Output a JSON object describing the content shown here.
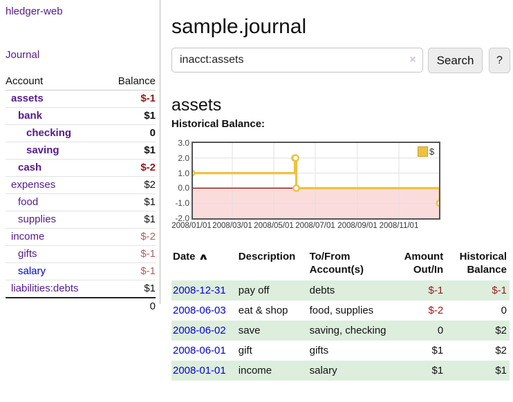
{
  "app": {
    "brand": "hledger-web"
  },
  "sidebar": {
    "nav_journal": "Journal",
    "table": {
      "headers": {
        "account": "Account",
        "balance": "Balance"
      },
      "rows": [
        {
          "name": "assets",
          "balance": "$-1"
        },
        {
          "name": "bank",
          "balance": "$1"
        },
        {
          "name": "checking",
          "balance": "0"
        },
        {
          "name": "saving",
          "balance": "$1"
        },
        {
          "name": "cash",
          "balance": "$-2"
        },
        {
          "name": "expenses",
          "balance": "$2"
        },
        {
          "name": "food",
          "balance": "$1"
        },
        {
          "name": "supplies",
          "balance": "$1"
        },
        {
          "name": "income",
          "balance": "$-2"
        },
        {
          "name": "gifts",
          "balance": "$-1"
        },
        {
          "name": "salary",
          "balance": "$-1"
        },
        {
          "name": "liabilities:debts",
          "balance": "$1"
        }
      ],
      "total": "0"
    }
  },
  "main": {
    "title": "sample.journal",
    "search": {
      "value": "inacct:assets",
      "clear_icon": "×",
      "button_label": "Search",
      "help_label": "?"
    },
    "account_heading": "assets",
    "chart_heading": "Historical Balance:"
  },
  "chart_data": {
    "type": "line",
    "step": true,
    "title": "Historical Balance",
    "legend": {
      "label": "$",
      "position": "top-right",
      "color": "#edc240"
    },
    "xlim": [
      "2008/01/01",
      "2009/01/01"
    ],
    "ylim": [
      -2,
      3
    ],
    "x_ticks": [
      "2008/01/01",
      "2008/03/01",
      "2008/05/01",
      "2008/07/01",
      "2008/09/01",
      "2008/11/01"
    ],
    "y_ticks": [
      3.0,
      2.0,
      1.0,
      0.0,
      -1.0,
      -2.0
    ],
    "grid": true,
    "zero_line_color": "#8b0000",
    "negative_region_fill": "#fbdcdc",
    "series": [
      {
        "name": "$",
        "color": "#edc240",
        "points": [
          [
            "2008/01/01",
            1
          ],
          [
            "2008/06/01",
            2
          ],
          [
            "2008/06/02",
            2
          ],
          [
            "2008/06/03",
            0
          ],
          [
            "2008/12/31",
            -1
          ]
        ]
      }
    ]
  },
  "register": {
    "headers": [
      {
        "l1": "Date",
        "l2": ""
      },
      {
        "l1": "Description",
        "l2": ""
      },
      {
        "l1": "To/From",
        "l2": "Account(s)"
      },
      {
        "l1": "Amount",
        "l2": "Out/In"
      },
      {
        "l1": "Historical",
        "l2": "Balance"
      }
    ],
    "sort_icon": "∧",
    "rows": [
      {
        "date": "2008-12-31",
        "description": "pay off",
        "accounts": "debts",
        "amount": "$-1",
        "balance": "$-1"
      },
      {
        "date": "2008-06-03",
        "description": "eat & shop",
        "accounts": "food, supplies",
        "amount": "$-2",
        "balance": "0"
      },
      {
        "date": "2008-06-02",
        "description": "save",
        "accounts": "saving, checking",
        "amount": "0",
        "balance": "$2"
      },
      {
        "date": "2008-06-01",
        "description": "gift",
        "accounts": "gifts",
        "amount": "$1",
        "balance": "$2"
      },
      {
        "date": "2008-01-01",
        "description": "income",
        "accounts": "salary",
        "amount": "$1",
        "balance": "$1"
      }
    ]
  }
}
